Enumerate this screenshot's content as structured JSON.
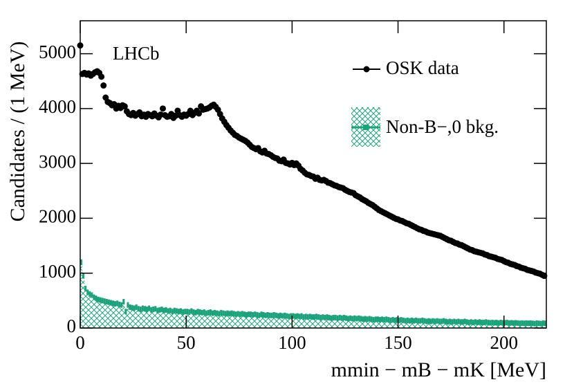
{
  "chart_data": {
    "type": "scatter",
    "annotation": "LHCb",
    "xlabel": "mmin − mB − mK [MeV]",
    "ylabel": "Candidates / (1 MeV)",
    "xlim": [
      0,
      220
    ],
    "xticks": [
      0,
      50,
      100,
      150,
      200
    ],
    "ylim": [
      0,
      5600
    ],
    "yticks": [
      0,
      1000,
      2000,
      3000,
      4000,
      5000
    ],
    "legend": "upper right",
    "x": [
      0,
      1,
      2,
      3,
      4,
      5,
      6,
      7,
      8,
      9,
      10,
      11,
      12,
      13,
      14,
      15,
      16,
      17,
      18,
      19,
      20,
      21,
      22,
      23,
      24,
      25,
      26,
      27,
      28,
      29,
      30,
      31,
      32,
      33,
      34,
      35,
      36,
      37,
      38,
      39,
      40,
      41,
      42,
      43,
      44,
      45,
      46,
      47,
      48,
      49,
      50,
      51,
      52,
      53,
      54,
      55,
      56,
      57,
      58,
      59,
      60,
      61,
      62,
      63,
      64,
      65,
      66,
      67,
      68,
      69,
      70,
      71,
      72,
      73,
      74,
      75,
      76,
      77,
      78,
      79,
      80,
      81,
      82,
      83,
      84,
      85,
      86,
      87,
      88,
      89,
      90,
      91,
      92,
      93,
      94,
      95,
      96,
      97,
      98,
      99,
      100,
      101,
      102,
      103,
      104,
      105,
      106,
      107,
      108,
      109,
      110,
      111,
      112,
      113,
      114,
      115,
      116,
      117,
      118,
      119,
      120,
      121,
      122,
      123,
      124,
      125,
      126,
      127,
      128,
      129,
      130,
      131,
      132,
      133,
      134,
      135,
      136,
      137,
      138,
      139,
      140,
      141,
      142,
      143,
      144,
      145,
      146,
      147,
      148,
      149,
      150,
      151,
      152,
      153,
      154,
      155,
      156,
      157,
      158,
      159,
      160,
      161,
      162,
      163,
      164,
      165,
      166,
      167,
      168,
      169,
      170,
      171,
      172,
      173,
      174,
      175,
      176,
      177,
      178,
      179,
      180,
      181,
      182,
      183,
      184,
      185,
      186,
      187,
      188,
      189,
      190,
      191,
      192,
      193,
      194,
      195,
      196,
      197,
      198,
      199,
      200,
      201,
      202,
      203,
      204,
      205,
      206,
      207,
      208,
      209,
      210,
      211,
      212,
      213,
      214,
      215,
      216,
      217,
      218,
      219
    ],
    "series": [
      {
        "name": "OSK data",
        "color": "#000000",
        "style": "points",
        "values": [
          5150,
          4630,
          4650,
          4620,
          4640,
          4600,
          4630,
          4660,
          4680,
          4650,
          4580,
          4420,
          4200,
          4120,
          4100,
          4060,
          4080,
          4000,
          4050,
          4010,
          4060,
          4040,
          3950,
          3900,
          3880,
          3920,
          3870,
          3900,
          3930,
          3860,
          3890,
          3850,
          3900,
          3880,
          3860,
          3910,
          3870,
          3840,
          3890,
          4000,
          3880,
          3850,
          3860,
          3900,
          3830,
          3870,
          3960,
          3880,
          3850,
          3890,
          3870,
          3900,
          3960,
          3880,
          3920,
          3960,
          3910,
          4040,
          3980,
          3990,
          4000,
          4020,
          4050,
          4070,
          4030,
          3980,
          3900,
          3820,
          3760,
          3700,
          3650,
          3600,
          3560,
          3520,
          3500,
          3470,
          3450,
          3430,
          3410,
          3380,
          3340,
          3300,
          3280,
          3260,
          3280,
          3220,
          3200,
          3230,
          3180,
          3170,
          3150,
          3120,
          3100,
          3090,
          3050,
          3040,
          3070,
          3010,
          3000,
          2980,
          3010,
          2970,
          3000,
          2960,
          2900,
          2870,
          2830,
          2800,
          2790,
          2770,
          2760,
          2720,
          2740,
          2700,
          2690,
          2700,
          2680,
          2650,
          2640,
          2620,
          2600,
          2590,
          2570,
          2560,
          2550,
          2520,
          2500,
          2480,
          2470,
          2460,
          2420,
          2400,
          2380,
          2350,
          2330,
          2310,
          2280,
          2260,
          2240,
          2210,
          2180,
          2150,
          2130,
          2110,
          2090,
          2070,
          2050,
          2030,
          2010,
          1990,
          1980,
          1960,
          1950,
          1930,
          1910,
          1900,
          1880,
          1860,
          1840,
          1820,
          1800,
          1790,
          1770,
          1760,
          1740,
          1730,
          1720,
          1710,
          1700,
          1690,
          1680,
          1660,
          1640,
          1620,
          1600,
          1590,
          1570,
          1550,
          1540,
          1520,
          1510,
          1490,
          1470,
          1450,
          1430,
          1420,
          1400,
          1390,
          1380,
          1370,
          1360,
          1340,
          1330,
          1310,
          1300,
          1290,
          1280,
          1260,
          1250,
          1240,
          1220,
          1200,
          1190,
          1170,
          1160,
          1150,
          1130,
          1120,
          1100,
          1090,
          1080,
          1060,
          1050,
          1040,
          1030,
          1010,
          1000,
          990,
          970,
          950
        ]
      },
      {
        "name": "Non-B−,0 bkg.",
        "color": "#1aa37a",
        "style": "hatched-histogram",
        "values": [
          1200,
          950,
          720,
          650,
          620,
          600,
          560,
          540,
          520,
          510,
          500,
          490,
          480,
          470,
          460,
          450,
          440,
          450,
          430,
          420,
          480,
          300,
          420,
          380,
          370,
          360,
          380,
          350,
          340,
          360,
          350,
          340,
          360,
          330,
          340,
          350,
          320,
          330,
          340,
          320,
          330,
          310,
          320,
          300,
          320,
          310,
          300,
          310,
          290,
          300,
          300,
          290,
          310,
          290,
          280,
          300,
          290,
          280,
          290,
          270,
          280,
          290,
          270,
          280,
          270,
          260,
          280,
          270,
          260,
          270,
          260,
          270,
          260,
          250,
          260,
          250,
          260,
          250,
          240,
          250,
          250,
          240,
          250,
          240,
          230,
          250,
          240,
          230,
          240,
          230,
          230,
          240,
          230,
          220,
          230,
          220,
          230,
          220,
          210,
          220,
          220,
          210,
          220,
          210,
          220,
          200,
          210,
          200,
          210,
          200,
          200,
          210,
          200,
          190,
          200,
          190,
          200,
          190,
          180,
          190,
          190,
          180,
          190,
          180,
          190,
          180,
          170,
          180,
          170,
          180,
          170,
          180,
          170,
          160,
          170,
          160,
          170,
          160,
          150,
          160,
          160,
          150,
          160,
          150,
          160,
          150,
          140,
          150,
          140,
          150,
          140,
          150,
          140,
          130,
          140,
          130,
          140,
          130,
          140,
          130,
          130,
          140,
          130,
          120,
          130,
          120,
          130,
          120,
          130,
          120,
          120,
          130,
          120,
          110,
          120,
          110,
          120,
          110,
          120,
          110,
          110,
          120,
          110,
          100,
          110,
          100,
          110,
          100,
          110,
          100,
          100,
          110,
          100,
          95,
          100,
          95,
          100,
          90,
          100,
          95,
          95,
          100,
          90,
          95,
          90,
          95,
          90,
          85,
          90,
          85,
          90,
          85,
          90,
          85,
          80,
          90,
          85,
          80,
          90,
          85
        ]
      }
    ]
  }
}
